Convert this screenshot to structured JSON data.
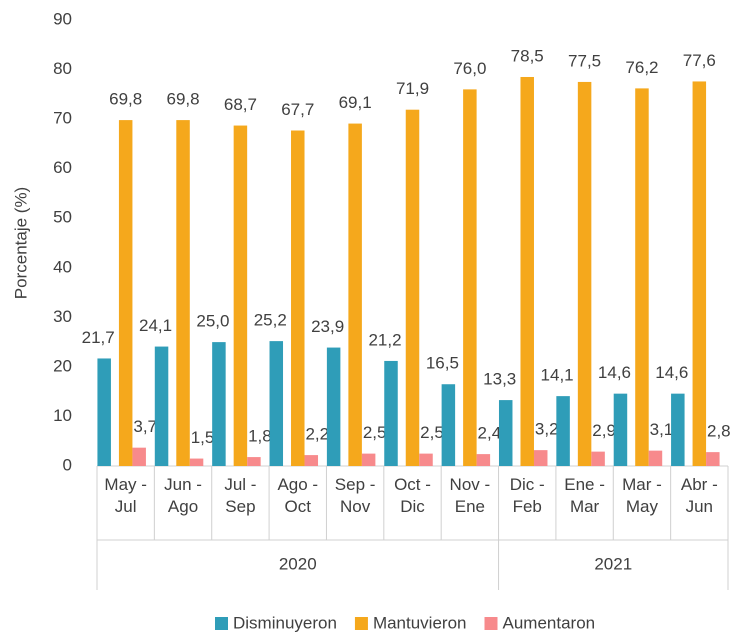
{
  "chart_data": {
    "type": "bar",
    "y_label": "Porcentaje (%)",
    "categories": [
      "May - Jul",
      "Jun - Ago",
      "Jul - Sep",
      "Ago - Oct",
      "Sep - Nov",
      "Oct - Dic",
      "Nov - Ene",
      "Dic - Feb",
      "Ene - Mar",
      "Mar - May",
      "Abr - Jun"
    ],
    "x_groups": [
      {
        "label": "2020",
        "count": 7
      },
      {
        "label": "2021",
        "count": 4
      }
    ],
    "series": [
      {
        "name": "Disminuyeron",
        "color": "#2f9db8",
        "values": [
          21.7,
          24.1,
          25.0,
          25.2,
          23.9,
          21.2,
          16.5,
          13.3,
          14.1,
          14.6,
          14.6
        ],
        "value_labels": [
          "21,7",
          "24,1",
          "25,0",
          "25,2",
          "23,9",
          "21,2",
          "16,5",
          "13,3",
          "14,1",
          "14,6",
          "14,6"
        ]
      },
      {
        "name": "Mantuvieron",
        "color": "#f5a81c",
        "values": [
          69.8,
          69.8,
          68.7,
          67.7,
          69.1,
          71.9,
          76.0,
          78.5,
          77.5,
          76.2,
          77.6
        ],
        "value_labels": [
          "69,8",
          "69,8",
          "68,7",
          "67,7",
          "69,1",
          "71,9",
          "76,0",
          "78,5",
          "77,5",
          "76,2",
          "77,6"
        ]
      },
      {
        "name": "Aumentaron",
        "color": "#f78a8c",
        "values": [
          3.7,
          1.5,
          1.8,
          2.2,
          2.5,
          2.5,
          2.4,
          3.2,
          2.9,
          3.1,
          2.8
        ],
        "value_labels": [
          "3,7",
          "1,5",
          "1,8",
          "2,2",
          "2,5",
          "2,5",
          "2,4",
          "3,2",
          "2,9",
          "3,1",
          "2,8"
        ]
      }
    ],
    "ylim": [
      0,
      90
    ],
    "yticks": [
      0,
      10,
      20,
      30,
      40,
      50,
      60,
      70,
      80,
      90
    ],
    "grid": false,
    "legend": "bottom"
  }
}
